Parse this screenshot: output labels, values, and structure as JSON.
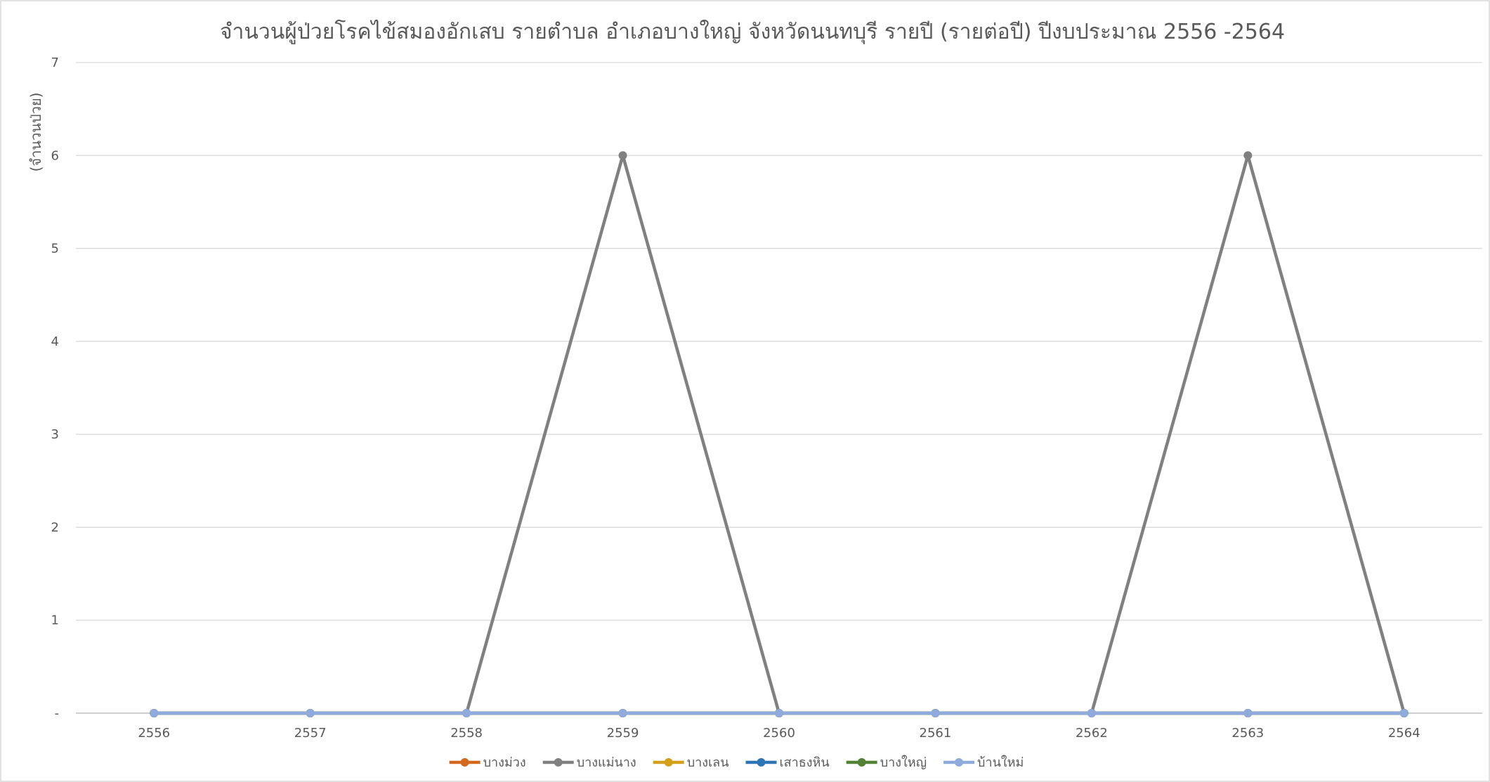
{
  "chart_data": {
    "type": "line",
    "title": "จำนวนผู้ป่วยโรคไข้สมองอักเสบ รายตำบล อำเภอบางใหญ่ จังหวัดนนทบุรี รายปี (รายต่อปี) ปีงบประมาณ 2556 -2564",
    "xlabel": "",
    "ylabel": "(จำนวนป่วย)",
    "categories": [
      "2556",
      "2557",
      "2558",
      "2559",
      "2560",
      "2561",
      "2562",
      "2563",
      "2564"
    ],
    "ylim": [
      0,
      7
    ],
    "yticks": [
      0,
      1,
      2,
      3,
      4,
      5,
      6,
      7
    ],
    "ytick_labels": [
      "-",
      "1",
      "2",
      "3",
      "4",
      "5",
      "6",
      "7"
    ],
    "grid": true,
    "legend_position": "bottom",
    "series": [
      {
        "name": "บางม่วง",
        "color": "#d2691e",
        "values": [
          0,
          0,
          0,
          0,
          0,
          0,
          0,
          0,
          0
        ]
      },
      {
        "name": "บางแม่นาง",
        "color": "#808080",
        "values": [
          0,
          0,
          0,
          6,
          0,
          0,
          0,
          6,
          0
        ]
      },
      {
        "name": "บางเลน",
        "color": "#d4a017",
        "values": [
          0,
          0,
          0,
          0,
          0,
          0,
          0,
          0,
          0
        ]
      },
      {
        "name": "เสาธงหิน",
        "color": "#2e75b6",
        "values": [
          0,
          0,
          0,
          0,
          0,
          0,
          0,
          0,
          0
        ]
      },
      {
        "name": "บางใหญ่",
        "color": "#548235",
        "values": [
          0,
          0,
          0,
          0,
          0,
          0,
          0,
          0,
          0
        ]
      },
      {
        "name": "บ้านใหม่",
        "color": "#8faadc",
        "values": [
          0,
          0,
          0,
          0,
          0,
          0,
          0,
          0,
          0
        ]
      }
    ]
  }
}
